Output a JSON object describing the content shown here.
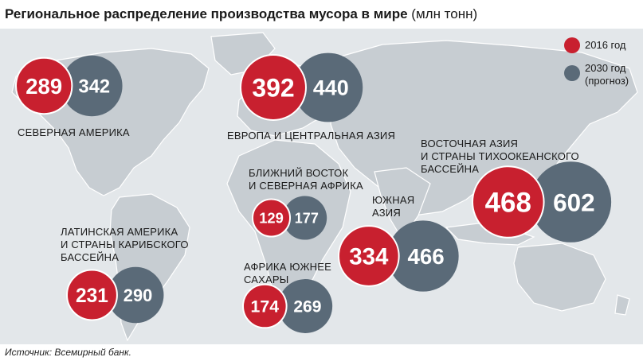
{
  "title": "Региональное распределение производства мусора в мире",
  "title_unit": "(млн тонн)",
  "source": "Источник: Всемирный банк.",
  "legend": {
    "item_2016": "2016 год",
    "item_2030_line1": "2030 год",
    "item_2030_line2": "(прогноз)"
  },
  "colors": {
    "2016": "#c8202f",
    "2030": "#5a6a78",
    "land": "#c7cdd2",
    "water": "#e3e7ea"
  },
  "chart_data": {
    "type": "bubble",
    "title": "Региональное распределение производства мусора в мире",
    "unit": "млн тонн",
    "series": [
      {
        "name": "2016 год",
        "values": [
          289,
          392,
          129,
          468,
          231,
          174,
          334
        ]
      },
      {
        "name": "2030 год (прогноз)",
        "values": [
          342,
          440,
          177,
          602,
          290,
          269,
          466
        ]
      }
    ],
    "regions": [
      {
        "id": "na",
        "label_lines": [
          "СЕВЕРНАЯ АМЕРИКА"
        ],
        "v2016": 289,
        "v2030": 342
      },
      {
        "id": "eu",
        "label_lines": [
          "ЕВРОПА И ЦЕНТРАЛЬНАЯ АЗИЯ"
        ],
        "v2016": 392,
        "v2030": 440
      },
      {
        "id": "me",
        "label_lines": [
          "БЛИЖНИЙ ВОСТОК",
          "И СЕВЕРНАЯ АФРИКА"
        ],
        "v2016": 129,
        "v2030": 177
      },
      {
        "id": "ea",
        "label_lines": [
          "ВОСТОЧНАЯ АЗИЯ",
          "И СТРАНЫ ТИХООКЕАНСКОГО",
          "БАССЕЙНА"
        ],
        "v2016": 468,
        "v2030": 602
      },
      {
        "id": "la",
        "label_lines": [
          "ЛАТИНСКАЯ АМЕРИКА",
          "И СТРАНЫ КАРИБСКОГО",
          "БАССЕЙНА"
        ],
        "v2016": 231,
        "v2030": 290
      },
      {
        "id": "af",
        "label_lines": [
          "АФРИКА ЮЖНЕЕ",
          "САХАРЫ"
        ],
        "v2016": 174,
        "v2030": 269
      },
      {
        "id": "sa",
        "label_lines": [
          "ЮЖНАЯ",
          "АЗИЯ"
        ],
        "v2016": 334,
        "v2030": 466
      }
    ]
  }
}
